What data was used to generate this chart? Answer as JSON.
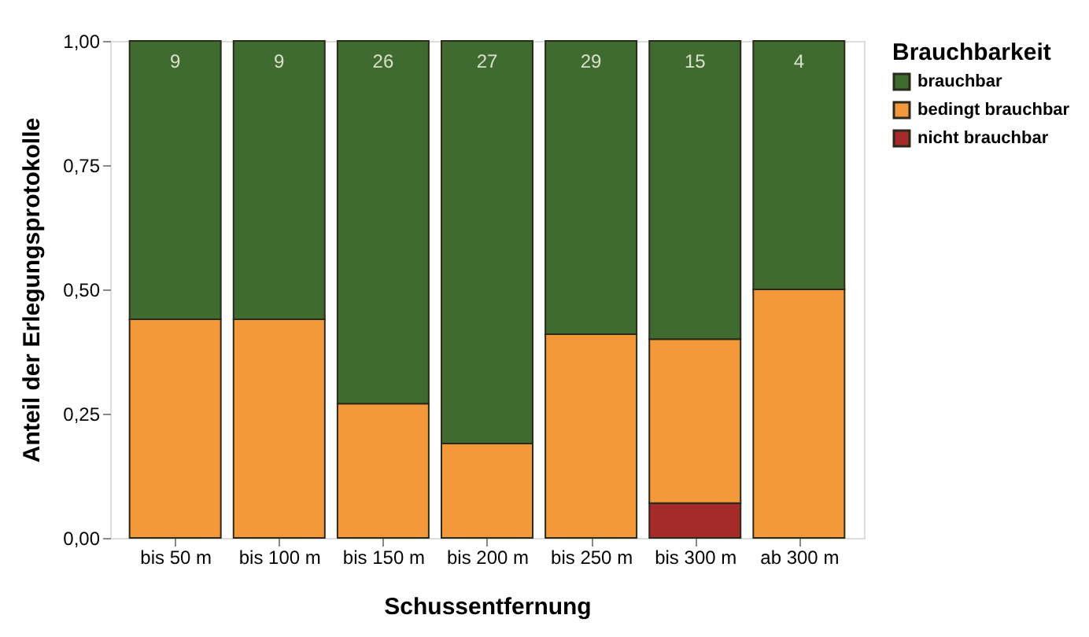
{
  "chart_data": {
    "type": "bar",
    "stacked": true,
    "xlabel": "Schussentfernung",
    "ylabel": "Anteil der Erlegungsprotokolle",
    "legend_title": "Brauchbarkeit",
    "legend": "right",
    "grid": false,
    "categories": [
      "bis 50 m",
      "bis 100 m",
      "bis 150 m",
      "bis 200 m",
      "bis 250 m",
      "bis 300 m",
      "ab 300 m"
    ],
    "series": [
      {
        "name": "nicht brauchbar",
        "color": "#a52a2a",
        "values": [
          0,
          0,
          0,
          0,
          0,
          0.07,
          0
        ]
      },
      {
        "name": "bedingt brauchbar",
        "color": "#f4993a",
        "values": [
          0.44,
          0.44,
          0.27,
          0.19,
          0.41,
          0.33,
          0.5
        ]
      },
      {
        "name": "brauchbar",
        "color": "#3f6b30",
        "values": [
          0.56,
          0.56,
          0.73,
          0.81,
          0.59,
          0.6,
          0.5
        ]
      }
    ],
    "ylim": [
      0,
      1
    ],
    "yticks": [
      {
        "value": 0,
        "label": "0,00"
      },
      {
        "value": 0.25,
        "label": "0,25"
      },
      {
        "value": 0.5,
        "label": "0,50"
      },
      {
        "value": 0.75,
        "label": "0,75"
      },
      {
        "value": 1,
        "label": "1,00"
      }
    ],
    "annotations": [
      "9",
      "9",
      "26",
      "27",
      "29",
      "15",
      "4"
    ]
  }
}
